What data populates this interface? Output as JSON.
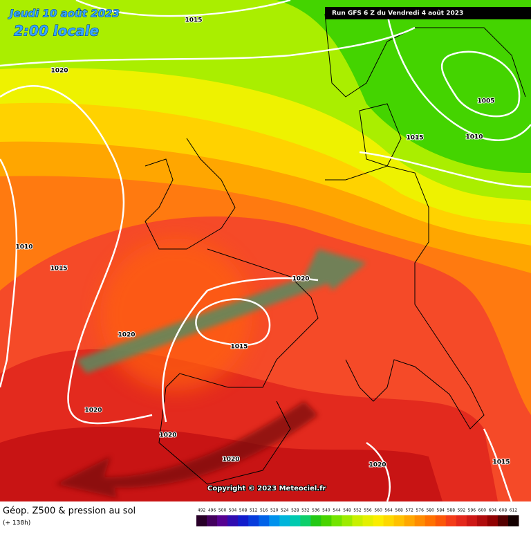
{
  "header": {
    "date": "Jeudi 10 août 2023",
    "time": "2:00 locale",
    "run": "Run GFS 6 Z du Vendredi 4 août 2023"
  },
  "isobar_labels": [
    "1015",
    "1020",
    "1010",
    "1015",
    "1005",
    "1015",
    "1010",
    "1020",
    "1020",
    "1015",
    "1020",
    "1020",
    "1020",
    "1020",
    "1015"
  ],
  "copyright": "Copyright © 2023 Meteociel.fr",
  "footer": {
    "title": "Géop. Z500 & pression au sol",
    "subtitle": "(+ 138h)"
  },
  "scale": [
    492,
    496,
    500,
    504,
    508,
    512,
    516,
    520,
    524,
    528,
    532,
    536,
    540,
    544,
    548,
    552,
    556,
    560,
    564,
    568,
    572,
    576,
    580,
    584,
    588,
    592,
    596,
    600,
    604,
    608,
    612
  ]
}
